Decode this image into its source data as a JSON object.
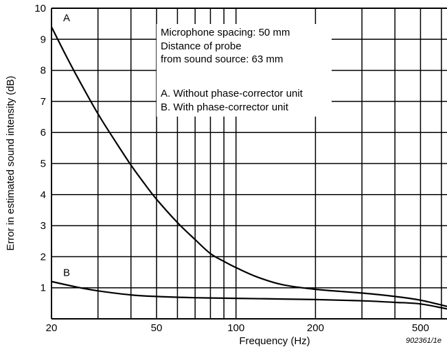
{
  "chart_data": {
    "type": "line",
    "xlabel": "Frequency (Hz)",
    "ylabel": "Error in estimated sound intensity (dB)",
    "x_scale": "log",
    "xlim": [
      20,
      630
    ],
    "ylim": [
      0,
      10
    ],
    "grid": true,
    "x_ticks": [
      20,
      30,
      40,
      50,
      60,
      70,
      80,
      90,
      100,
      200,
      300,
      400,
      500,
      600
    ],
    "x_tick_labels": [
      {
        "value": 20,
        "label": "20"
      },
      {
        "value": 50,
        "label": "50"
      },
      {
        "value": 100,
        "label": "100"
      },
      {
        "value": 200,
        "label": "200"
      },
      {
        "value": 500,
        "label": "500"
      }
    ],
    "y_ticks": [
      1,
      2,
      3,
      4,
      5,
      6,
      7,
      8,
      9,
      10
    ],
    "y_tick_labels": [
      "1",
      "2",
      "3",
      "4",
      "5",
      "6",
      "7",
      "8",
      "9",
      "10"
    ],
    "series": [
      {
        "name": "A",
        "points": [
          [
            20,
            9.4
          ],
          [
            22,
            8.7
          ],
          [
            25,
            7.8
          ],
          [
            30,
            6.6
          ],
          [
            35,
            5.7
          ],
          [
            40,
            4.95
          ],
          [
            45,
            4.35
          ],
          [
            50,
            3.85
          ],
          [
            60,
            3.1
          ],
          [
            70,
            2.55
          ],
          [
            80,
            2.1
          ],
          [
            90,
            1.85
          ],
          [
            100,
            1.65
          ],
          [
            120,
            1.35
          ],
          [
            150,
            1.1
          ],
          [
            200,
            0.95
          ],
          [
            300,
            0.83
          ],
          [
            400,
            0.72
          ],
          [
            500,
            0.6
          ],
          [
            630,
            0.4
          ]
        ]
      },
      {
        "name": "B",
        "points": [
          [
            20,
            1.2
          ],
          [
            25,
            1.02
          ],
          [
            30,
            0.9
          ],
          [
            40,
            0.77
          ],
          [
            50,
            0.72
          ],
          [
            70,
            0.68
          ],
          [
            100,
            0.66
          ],
          [
            200,
            0.62
          ],
          [
            300,
            0.58
          ],
          [
            400,
            0.53
          ],
          [
            500,
            0.48
          ],
          [
            630,
            0.32
          ]
        ]
      }
    ],
    "annotations": {
      "spacing": "Microphone spacing: 50 mm",
      "distance_1": "Distance of probe",
      "distance_2": "from sound source: 63 mm",
      "legend_a": "A. Without phase-corrector unit",
      "legend_b": "B. With phase-corrector unit"
    },
    "figure_id": "902361/1e"
  }
}
